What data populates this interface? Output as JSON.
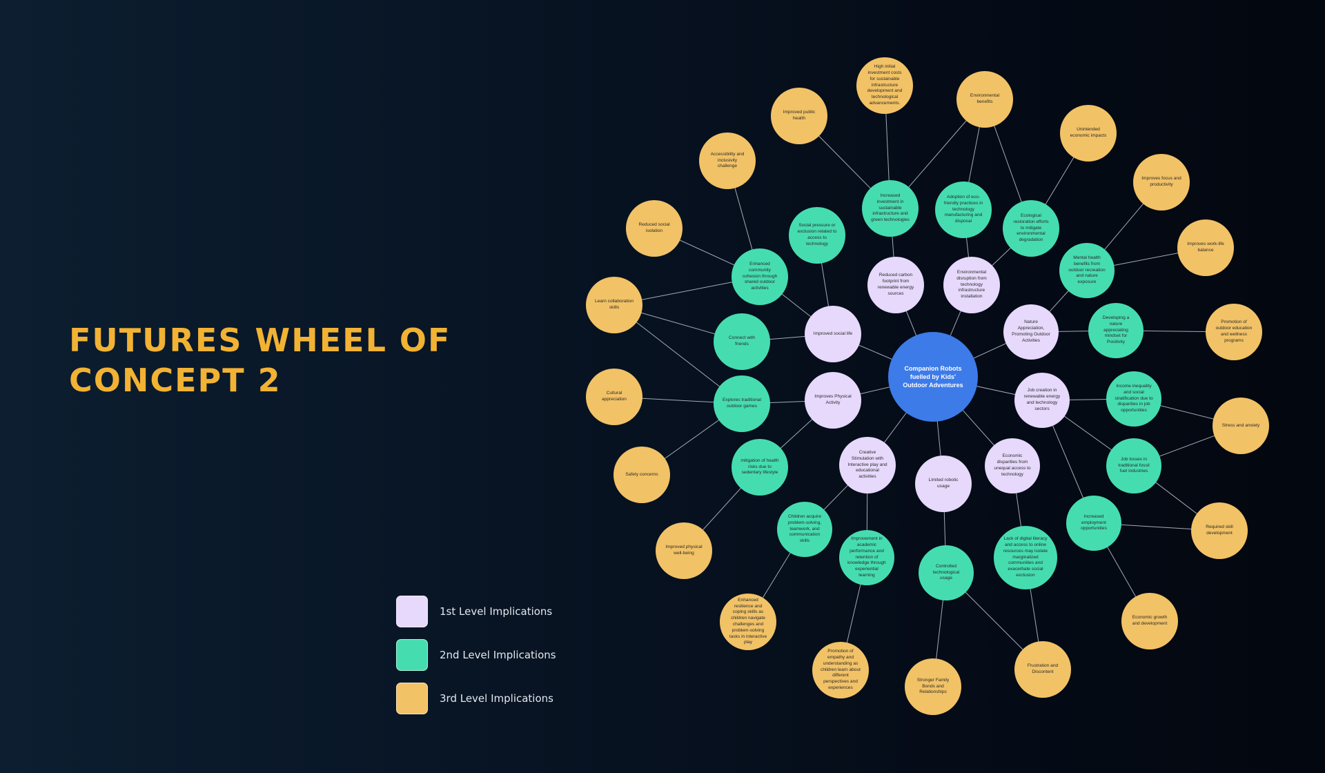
{
  "title": "FUTURES WHEEL OF CONCEPT 2",
  "colors": {
    "level0": "#3d7be9",
    "level1": "#e6d9fb",
    "level2": "#45ddb0",
    "level3": "#f2c266",
    "title": "#f2b233",
    "line": "#a4acb8"
  },
  "legend": [
    {
      "label": "1st Level Implications",
      "color": "#e6d9fb"
    },
    {
      "label": "2nd Level Implications",
      "color": "#45ddb0"
    },
    {
      "label": "3rd Level Implications",
      "color": "#f2c266"
    }
  ],
  "nodes": [
    {
      "id": "center",
      "level": 0,
      "label": "Companion Robots fuelled by Kids' Outdoor Adventures"
    },
    {
      "id": "f1",
      "level": 1,
      "label": "Reduced carbon footprint from renewable energy sources"
    },
    {
      "id": "f2",
      "level": 1,
      "label": "Environmental disruption from technology infrastructure installation"
    },
    {
      "id": "f3",
      "level": 1,
      "label": "Nature Appreciation, Promoting Outdoor Activities"
    },
    {
      "id": "f4",
      "level": 1,
      "label": "Job creation in renewable energy and technology sectors"
    },
    {
      "id": "f5",
      "level": 1,
      "label": "Economic disparities from unequal access to technology"
    },
    {
      "id": "f6",
      "level": 1,
      "label": "Limited robotic usage"
    },
    {
      "id": "f7",
      "level": 1,
      "label": "Creative Stimulation with Interactive play and educational activities"
    },
    {
      "id": "f8",
      "level": 1,
      "label": "Improves Physical Activity"
    },
    {
      "id": "f9",
      "level": 1,
      "label": "Improved social life"
    },
    {
      "id": "s1",
      "level": 2,
      "label": "Increased investment in sustainable infrastructure and green technologies"
    },
    {
      "id": "s2",
      "level": 2,
      "label": "Adoption of eco-friendly practices in technology manufacturing and disposal"
    },
    {
      "id": "s3",
      "level": 2,
      "label": "Ecological restoration efforts to mitigate environmental degradation"
    },
    {
      "id": "s4",
      "level": 2,
      "label": "Mental health benefits from outdoor recreation and nature exposure"
    },
    {
      "id": "s5",
      "level": 2,
      "label": "Developing a nature appreciating mindset for Positivity"
    },
    {
      "id": "s6",
      "level": 2,
      "label": "Income inequality and social stratification due to disparities in job opportunities"
    },
    {
      "id": "s7",
      "level": 2,
      "label": "Job losses in traditional fossil fuel industries"
    },
    {
      "id": "s8",
      "level": 2,
      "label": "Increased employment opportunities"
    },
    {
      "id": "s9",
      "level": 2,
      "label": "Lack of digital literacy and access to online resources may isolate marginalized communities and exacerbate social exclusion"
    },
    {
      "id": "s10",
      "level": 2,
      "label": "Controlled technological usage"
    },
    {
      "id": "s11",
      "level": 2,
      "label": "Improvement in academic performance and retention of knowledge through experiential learning"
    },
    {
      "id": "s12",
      "level": 2,
      "label": "Children acquire problem-solving, teamwork, and communication skills"
    },
    {
      "id": "s13",
      "level": 2,
      "label": "mitigation of health risks due to sedentary lifestyle"
    },
    {
      "id": "s14",
      "level": 2,
      "label": "Explores traditional outdoor games"
    },
    {
      "id": "s15",
      "level": 2,
      "label": "Connect with friends"
    },
    {
      "id": "s16",
      "level": 2,
      "label": "Enhanced community cohesion through shared outdoor activities"
    },
    {
      "id": "s17",
      "level": 2,
      "label": "Social pressure or exclusion related to access to technology"
    },
    {
      "id": "t1",
      "level": 3,
      "label": "High initial investment costs for sustainable infrastructure development and technological advancements."
    },
    {
      "id": "t2",
      "level": 3,
      "label": "Environmental benefits"
    },
    {
      "id": "t3",
      "level": 3,
      "label": "Unintended economic impacts"
    },
    {
      "id": "t4",
      "level": 3,
      "label": "Improves focus and productivity"
    },
    {
      "id": "t5",
      "level": 3,
      "label": "Improves work-life balance"
    },
    {
      "id": "t6",
      "level": 3,
      "label": "Promotion of outdoor education and wellness programs"
    },
    {
      "id": "t7",
      "level": 3,
      "label": "Stress and anxiety"
    },
    {
      "id": "t8",
      "level": 3,
      "label": "Required skill development"
    },
    {
      "id": "t9",
      "level": 3,
      "label": "Economic growth and development"
    },
    {
      "id": "t10",
      "level": 3,
      "label": "Frustration and Discontent"
    },
    {
      "id": "t11",
      "level": 3,
      "label": "Stronger Family Bonds and Relationships"
    },
    {
      "id": "t12",
      "level": 3,
      "label": "Promotion of empathy and understanding as children learn about different perspectives and experiences"
    },
    {
      "id": "t13",
      "level": 3,
      "label": "Enhanced resilience and coping skills as children navigate challenges and problem-solving tasks in interactive play"
    },
    {
      "id": "t14",
      "level": 3,
      "label": "Improved physical well-being"
    },
    {
      "id": "t15",
      "level": 3,
      "label": "Safety concerns"
    },
    {
      "id": "t16",
      "level": 3,
      "label": "Cultural appreciation"
    },
    {
      "id": "t17",
      "level": 3,
      "label": "Learn collaboration skills"
    },
    {
      "id": "t18",
      "level": 3,
      "label": "Reduced social isolation"
    },
    {
      "id": "t19",
      "level": 3,
      "label": "Accessibility and inclusivity challenge"
    },
    {
      "id": "t20",
      "level": 3,
      "label": "Improved public health"
    }
  ],
  "edges": [
    [
      "center",
      "f1"
    ],
    [
      "center",
      "f2"
    ],
    [
      "center",
      "f3"
    ],
    [
      "center",
      "f4"
    ],
    [
      "center",
      "f5"
    ],
    [
      "center",
      "f6"
    ],
    [
      "center",
      "f7"
    ],
    [
      "center",
      "f8"
    ],
    [
      "center",
      "f9"
    ],
    [
      "f1",
      "s1"
    ],
    [
      "f2",
      "s2"
    ],
    [
      "f2",
      "s3"
    ],
    [
      "f3",
      "s4"
    ],
    [
      "f3",
      "s5"
    ],
    [
      "f4",
      "s6"
    ],
    [
      "f4",
      "s7"
    ],
    [
      "f4",
      "s8"
    ],
    [
      "f5",
      "s9"
    ],
    [
      "f6",
      "s10"
    ],
    [
      "f7",
      "s11"
    ],
    [
      "f7",
      "s12"
    ],
    [
      "f8",
      "s13"
    ],
    [
      "f8",
      "s14"
    ],
    [
      "f9",
      "s15"
    ],
    [
      "f9",
      "s16"
    ],
    [
      "f9",
      "s17"
    ],
    [
      "s1",
      "t1"
    ],
    [
      "s1",
      "t2"
    ],
    [
      "s1",
      "t20"
    ],
    [
      "s2",
      "t2"
    ],
    [
      "s3",
      "t2"
    ],
    [
      "s3",
      "t3"
    ],
    [
      "s4",
      "t4"
    ],
    [
      "s4",
      "t5"
    ],
    [
      "s5",
      "t6"
    ],
    [
      "s6",
      "t7"
    ],
    [
      "s7",
      "t7"
    ],
    [
      "s7",
      "t8"
    ],
    [
      "s8",
      "t8"
    ],
    [
      "s8",
      "t9"
    ],
    [
      "s9",
      "t10"
    ],
    [
      "s10",
      "t10"
    ],
    [
      "s10",
      "t11"
    ],
    [
      "s11",
      "t12"
    ],
    [
      "s12",
      "t13"
    ],
    [
      "s13",
      "t14"
    ],
    [
      "s14",
      "t15"
    ],
    [
      "s14",
      "t16"
    ],
    [
      "s14",
      "t17"
    ],
    [
      "s15",
      "t17"
    ],
    [
      "s16",
      "t17"
    ],
    [
      "s16",
      "t18"
    ],
    [
      "s16",
      "t19"
    ]
  ]
}
